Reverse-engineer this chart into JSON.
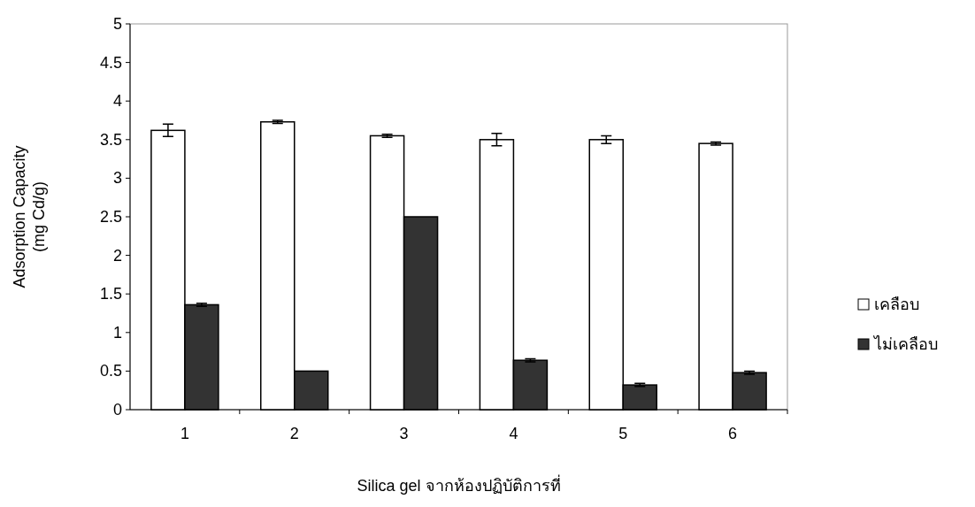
{
  "chart_data": {
    "type": "bar",
    "xlabel": "Silica gel จากห้องปฏิบัติการที่",
    "ylabel": "Adsorption Capacity (mg Cd/g)",
    "categories": [
      "1",
      "2",
      "3",
      "4",
      "5",
      "6"
    ],
    "series": [
      {
        "name": "เคลือบ",
        "color": "#ffffff",
        "values": [
          3.62,
          3.73,
          3.55,
          3.5,
          3.5,
          3.45
        ],
        "errors": [
          0.08,
          0.02,
          0.02,
          0.08,
          0.05,
          0.02
        ]
      },
      {
        "name": "ไม่เคลือบ",
        "color": "#333333",
        "values": [
          1.36,
          0.5,
          2.5,
          0.64,
          0.32,
          0.48
        ],
        "errors": [
          0.02,
          null,
          null,
          0.02,
          0.02,
          0.02
        ]
      }
    ],
    "ylim": [
      0,
      5
    ],
    "yticks": [
      0,
      0.5,
      1,
      1.5,
      2,
      2.5,
      3,
      3.5,
      4,
      4.5,
      5
    ],
    "legend": "right"
  }
}
